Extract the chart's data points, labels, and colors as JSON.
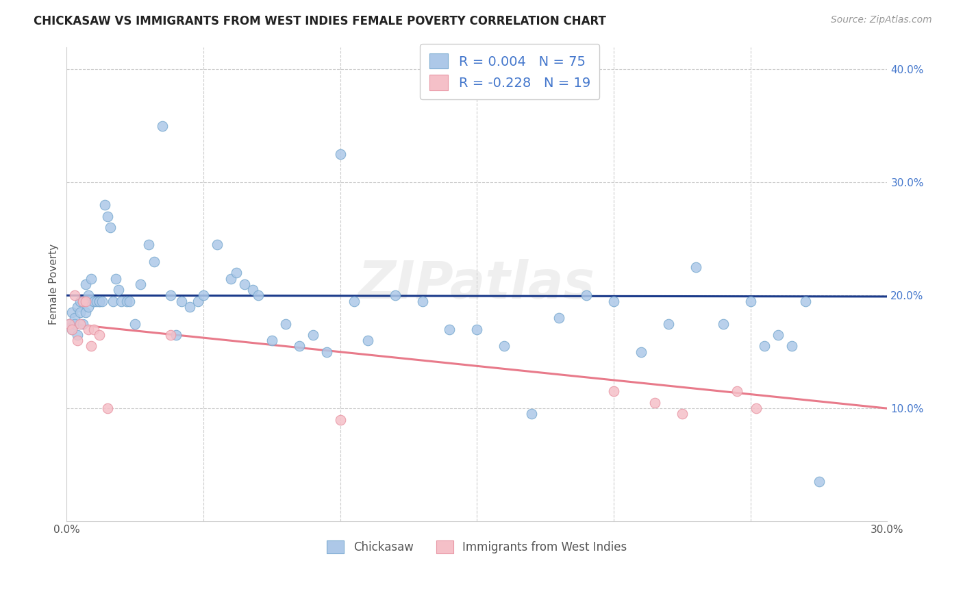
{
  "title": "CHICKASAW VS IMMIGRANTS FROM WEST INDIES FEMALE POVERTY CORRELATION CHART",
  "source": "Source: ZipAtlas.com",
  "ylabel": "Female Poverty",
  "watermark": "ZIPatlas",
  "xlim": [
    0.0,
    0.3
  ],
  "ylim": [
    0.0,
    0.42
  ],
  "series1_color": "#adc8e8",
  "series1_edge": "#7aaad0",
  "series2_color": "#f5c0c8",
  "series2_edge": "#e896a4",
  "line1_color": "#1a3a8a",
  "line2_color": "#e87a8a",
  "R1": 0.004,
  "N1": 75,
  "R2": -0.228,
  "N2": 19,
  "legend_label1": "Chickasaw",
  "legend_label2": "Immigrants from West Indies",
  "text_color_blue": "#4477cc",
  "text_color_gray": "#555555",
  "grid_color": "#cccccc",
  "title_color": "#222222",
  "chickasaw_x": [
    0.001,
    0.002,
    0.002,
    0.003,
    0.003,
    0.004,
    0.004,
    0.005,
    0.005,
    0.006,
    0.006,
    0.007,
    0.007,
    0.008,
    0.008,
    0.009,
    0.01,
    0.01,
    0.011,
    0.012,
    0.012,
    0.013,
    0.014,
    0.015,
    0.016,
    0.017,
    0.018,
    0.019,
    0.02,
    0.022,
    0.023,
    0.025,
    0.027,
    0.03,
    0.032,
    0.035,
    0.038,
    0.04,
    0.042,
    0.045,
    0.048,
    0.05,
    0.055,
    0.06,
    0.062,
    0.065,
    0.068,
    0.07,
    0.075,
    0.08,
    0.085,
    0.09,
    0.095,
    0.1,
    0.105,
    0.11,
    0.12,
    0.13,
    0.14,
    0.15,
    0.16,
    0.17,
    0.18,
    0.19,
    0.2,
    0.21,
    0.22,
    0.23,
    0.24,
    0.25,
    0.255,
    0.26,
    0.265,
    0.27,
    0.275
  ],
  "chickasaw_y": [
    0.175,
    0.185,
    0.17,
    0.18,
    0.175,
    0.19,
    0.165,
    0.185,
    0.195,
    0.175,
    0.195,
    0.21,
    0.185,
    0.2,
    0.19,
    0.215,
    0.195,
    0.195,
    0.195,
    0.195,
    0.195,
    0.195,
    0.28,
    0.27,
    0.26,
    0.195,
    0.215,
    0.205,
    0.195,
    0.195,
    0.195,
    0.175,
    0.21,
    0.245,
    0.23,
    0.35,
    0.2,
    0.165,
    0.195,
    0.19,
    0.195,
    0.2,
    0.245,
    0.215,
    0.22,
    0.21,
    0.205,
    0.2,
    0.16,
    0.175,
    0.155,
    0.165,
    0.15,
    0.325,
    0.195,
    0.16,
    0.2,
    0.195,
    0.17,
    0.17,
    0.155,
    0.095,
    0.18,
    0.2,
    0.195,
    0.15,
    0.175,
    0.225,
    0.175,
    0.195,
    0.155,
    0.165,
    0.155,
    0.195,
    0.035
  ],
  "westindies_x": [
    0.001,
    0.002,
    0.003,
    0.004,
    0.005,
    0.006,
    0.007,
    0.008,
    0.009,
    0.01,
    0.012,
    0.015,
    0.038,
    0.1,
    0.2,
    0.215,
    0.225,
    0.245,
    0.252
  ],
  "westindies_y": [
    0.175,
    0.17,
    0.2,
    0.16,
    0.175,
    0.195,
    0.195,
    0.17,
    0.155,
    0.17,
    0.165,
    0.1,
    0.165,
    0.09,
    0.115,
    0.105,
    0.095,
    0.115,
    0.1
  ],
  "blue_line_y0": 0.2,
  "blue_line_y1": 0.199,
  "pink_line_y0": 0.175,
  "pink_line_y1": 0.1
}
